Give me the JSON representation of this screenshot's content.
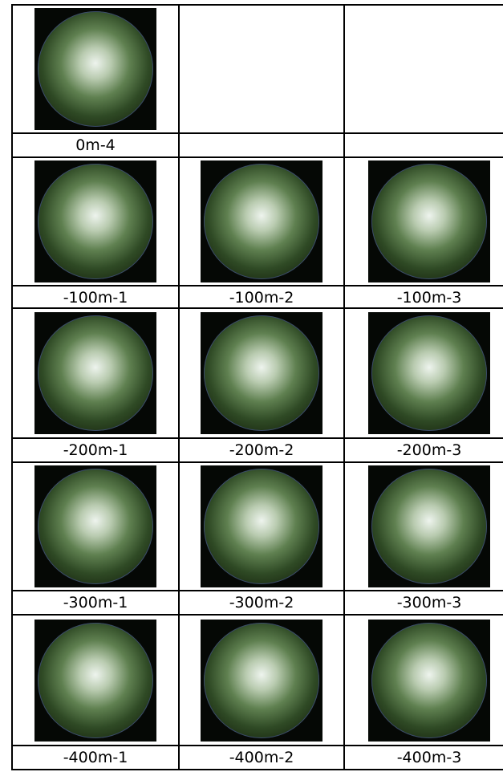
{
  "table": {
    "rows": [
      [
        "0m-4"
      ],
      [
        "-100m-1",
        "-100m-2",
        "-100m-3"
      ],
      [
        "-200m-1",
        "-200m-2",
        "-200m-3"
      ],
      [
        "-300m-1",
        "-300m-2",
        "-300m-3"
      ],
      [
        "-400m-1",
        "-400m-2",
        "-400m-3"
      ]
    ]
  }
}
